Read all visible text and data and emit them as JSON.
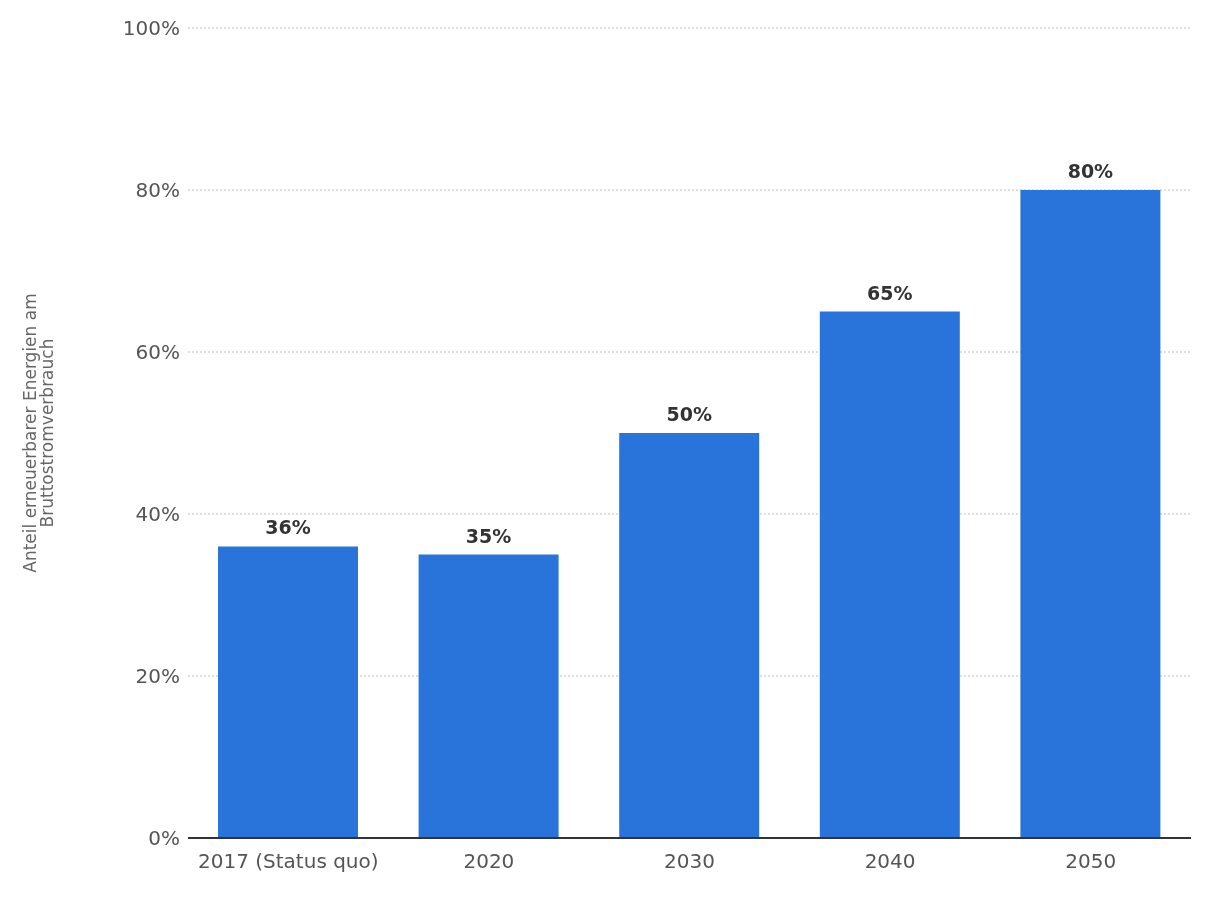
{
  "chart_data": {
    "type": "bar",
    "ylabel": "Anteil erneuerbarer Energien am Bruttostromverbrauch",
    "categories": [
      "2017 (Status quo)",
      "2020",
      "2030",
      "2040",
      "2050"
    ],
    "values": [
      36,
      35,
      50,
      65,
      80
    ],
    "color": "#2874db",
    "value_labels": [
      "36%",
      "35%",
      "50%",
      "65%",
      "80%"
    ],
    "ylim": [
      0,
      100
    ],
    "yticks": [
      {
        "value": 0,
        "label": "0%"
      },
      {
        "value": 20,
        "label": "20%"
      },
      {
        "value": 40,
        "label": "40%"
      },
      {
        "value": 60,
        "label": "60%"
      },
      {
        "value": 80,
        "label": "80%"
      },
      {
        "value": 100,
        "label": "100%"
      }
    ],
    "grid": "y",
    "legend": false
  }
}
